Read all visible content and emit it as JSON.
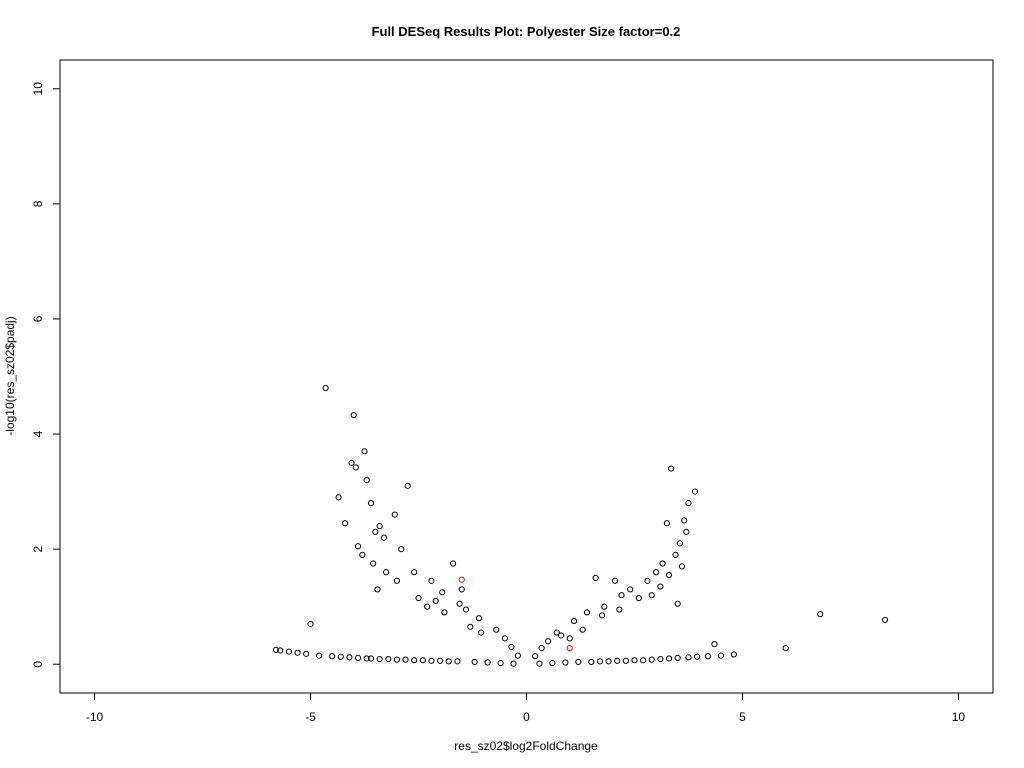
{
  "chart_data": {
    "type": "scatter",
    "title": "Full DESeq Results Plot: Polyester Size factor=0.2",
    "xlabel": "res_sz02$log2FoldChange",
    "ylabel": "-log10(res_sz02$padj)",
    "xlim": [
      -10.8,
      10.8
    ],
    "ylim": [
      -0.5,
      10.5
    ],
    "xticks": [
      -10,
      -5,
      0,
      5,
      10
    ],
    "xtick_labels": [
      "-10",
      "-5",
      "0",
      "5",
      "10"
    ],
    "yticks": [
      0,
      2,
      4,
      6,
      8,
      10
    ],
    "ytick_labels": [
      "0",
      "2",
      "4",
      "6",
      "8",
      "10"
    ],
    "grid": false,
    "legend": "none",
    "marker": "open-circle",
    "colors": {
      "points": "#000000",
      "highlight": "#ff0000",
      "axes": "#000000",
      "background": "#ffffff"
    },
    "series": [
      {
        "color": "#000000",
        "x": [
          -4.65,
          -4.0,
          -3.75,
          -4.05,
          -3.95,
          -3.7,
          -2.75,
          -4.35,
          -3.6,
          -3.05,
          -4.2,
          -3.4,
          -3.5,
          -3.9,
          -3.3,
          -2.9,
          -3.8,
          -3.55,
          -3.25,
          -3.0,
          -3.45,
          -2.5,
          -2.3,
          -5.0,
          -5.8,
          -5.7,
          -5.5,
          -5.3,
          -5.1,
          -4.8,
          -4.5,
          -4.3,
          -4.1,
          -3.9,
          -3.7,
          -3.6,
          -3.4,
          -3.2,
          -3.0,
          -2.8,
          -2.6,
          -2.4,
          -2.2,
          -2.0,
          -1.8,
          -1.6,
          -1.2,
          -0.9,
          -0.6,
          -0.3,
          -1.4,
          -1.1,
          -0.7,
          -0.5,
          -0.35,
          -0.2,
          -2.1,
          -1.9,
          -1.7,
          -1.5,
          -1.3,
          -2.6,
          -2.2,
          -1.95,
          -1.55,
          -1.05,
          3.35,
          3.9,
          3.75,
          3.65,
          3.7,
          3.25,
          3.55,
          3.45,
          3.15,
          3.6,
          3.3,
          3.1,
          2.9,
          3.5,
          6.8,
          8.3,
          6.0,
          4.8,
          4.5,
          4.35,
          4.2,
          3.95,
          3.75,
          3.5,
          3.3,
          3.1,
          2.9,
          2.7,
          2.5,
          2.3,
          2.1,
          1.9,
          1.7,
          1.5,
          1.2,
          0.9,
          0.6,
          0.3,
          1.4,
          1.1,
          0.7,
          0.5,
          0.35,
          0.2,
          2.05,
          2.2,
          1.8,
          1.6,
          1.3,
          1.0,
          2.4,
          2.6,
          2.8,
          3.0,
          0.8,
          1.75,
          2.15
        ],
        "y": [
          4.8,
          4.33,
          3.7,
          3.5,
          3.42,
          3.2,
          3.1,
          2.9,
          2.8,
          2.6,
          2.45,
          2.4,
          2.3,
          2.05,
          2.2,
          2.0,
          1.9,
          1.75,
          1.6,
          1.45,
          1.3,
          1.15,
          1.0,
          0.7,
          0.25,
          0.24,
          0.22,
          0.2,
          0.18,
          0.15,
          0.14,
          0.13,
          0.12,
          0.11,
          0.1,
          0.1,
          0.09,
          0.09,
          0.08,
          0.08,
          0.07,
          0.07,
          0.06,
          0.06,
          0.05,
          0.05,
          0.04,
          0.03,
          0.02,
          0.01,
          0.95,
          0.8,
          0.6,
          0.45,
          0.3,
          0.15,
          1.1,
          0.9,
          1.75,
          1.3,
          0.65,
          1.6,
          1.45,
          1.25,
          1.05,
          0.55,
          3.4,
          3.0,
          2.8,
          2.5,
          2.3,
          2.45,
          2.1,
          1.9,
          1.75,
          1.7,
          1.55,
          1.35,
          1.2,
          1.05,
          0.87,
          0.77,
          0.28,
          0.17,
          0.15,
          0.35,
          0.14,
          0.13,
          0.12,
          0.11,
          0.1,
          0.09,
          0.08,
          0.07,
          0.07,
          0.06,
          0.06,
          0.05,
          0.05,
          0.04,
          0.04,
          0.03,
          0.02,
          0.01,
          0.9,
          0.75,
          0.55,
          0.4,
          0.28,
          0.14,
          1.45,
          1.2,
          1.0,
          1.5,
          0.6,
          0.45,
          1.3,
          1.15,
          1.45,
          1.6,
          0.5,
          0.85,
          0.95
        ]
      },
      {
        "color": "#ff0000",
        "x": [
          -1.5,
          1.0
        ],
        "y": [
          1.47,
          0.28
        ]
      }
    ]
  }
}
